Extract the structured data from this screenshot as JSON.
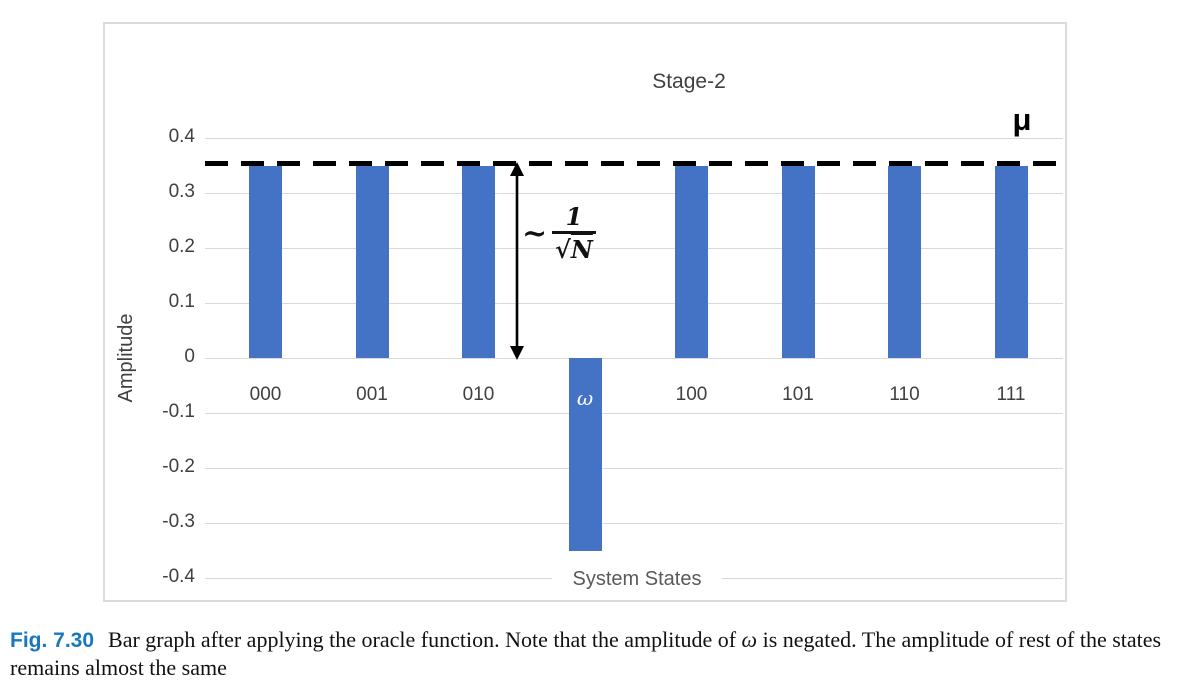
{
  "figure": {
    "caption_label": "Fig. 7.30",
    "caption_before": "Bar graph after applying the oracle function. Note that the amplitude of ",
    "caption_omega": "ω",
    "caption_after": " is negated. The amplitude of rest of the states remains almost the same"
  },
  "chart_data": {
    "type": "bar",
    "title": "Stage-2",
    "xlabel": "System States",
    "ylabel": "Amplitude",
    "categories": [
      "000",
      "001",
      "010",
      "ω",
      "100",
      "101",
      "110",
      "111"
    ],
    "values": [
      0.35,
      0.35,
      0.35,
      -0.35,
      0.35,
      0.35,
      0.35,
      0.35
    ],
    "highlight_category": "ω",
    "ylim": [
      -0.4,
      0.4
    ],
    "ytick_step": 0.1,
    "yticks": [
      "0.4",
      "0.3",
      "0.2",
      "0.1",
      "0",
      "-0.1",
      "-0.2",
      "-0.3",
      "-0.4"
    ],
    "grid": true,
    "legend": "none",
    "bar_color": "#4472C4",
    "gridline_color": "#D9D9D9",
    "mean_line": {
      "value": 0.354,
      "label": "μ",
      "style": "dashed",
      "color": "#000000"
    },
    "annotation": {
      "tilde": "~",
      "numerator": "1",
      "radical": "√",
      "radicand": "N"
    }
  }
}
